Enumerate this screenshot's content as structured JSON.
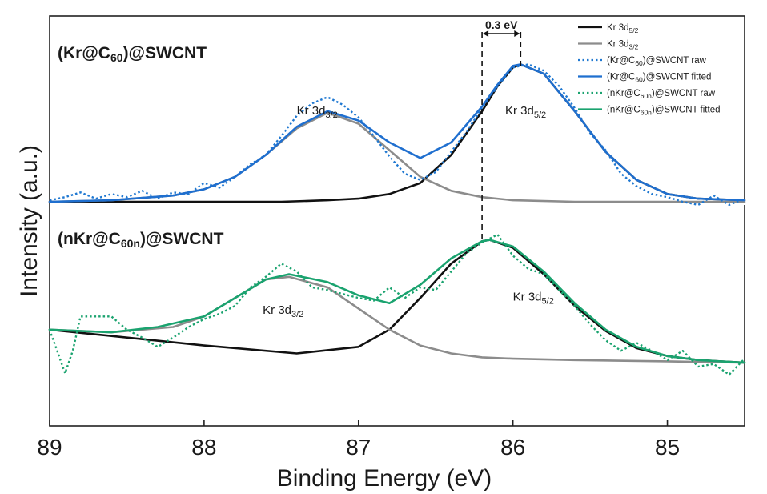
{
  "chart_data": {
    "type": "line",
    "title": "",
    "xlabel": "Binding Energy (eV)",
    "ylabel": "Intensity (a.u.)",
    "xlim": [
      89,
      84.5
    ],
    "x_reversed": true,
    "xticks": [
      89,
      88,
      87,
      86,
      85
    ],
    "x_tick_labels": [
      "89",
      "88",
      "87",
      "86",
      "85"
    ],
    "yticks_shown": false,
    "grid": false,
    "legend_position": "top-right",
    "panels": [
      {
        "name": "top",
        "label_main": "(Kr@C",
        "label_sub": "60",
        "label_tail": ")@SWCNT",
        "peak_labels": [
          {
            "main": "Kr 3d",
            "sub": "3/2",
            "x": 87.4,
            "y": 0.56
          },
          {
            "main": "Kr 3d",
            "sub": "5/2",
            "x": 86.05,
            "y": 0.56
          }
        ],
        "series": [
          {
            "name": "Kr 3d5/2",
            "color": "#111111",
            "style": "solid",
            "x": [
              89,
              88.5,
              88,
              87.5,
              87.2,
              87,
              86.8,
              86.6,
              86.4,
              86.2,
              86.1,
              86.0,
              85.95,
              85.8,
              85.6,
              85.4,
              85.2,
              85.0,
              84.8,
              84.5
            ],
            "y": [
              0.0,
              0.0,
              0.0,
              0.0,
              0.01,
              0.02,
              0.05,
              0.12,
              0.3,
              0.58,
              0.74,
              0.86,
              0.88,
              0.82,
              0.58,
              0.32,
              0.14,
              0.05,
              0.02,
              0.01
            ]
          },
          {
            "name": "Kr 3d3/2",
            "color": "#8c8c8c",
            "style": "solid",
            "x": [
              89,
              88.6,
              88.2,
              88.0,
              87.8,
              87.6,
              87.4,
              87.2,
              87.0,
              86.8,
              86.6,
              86.4,
              86.2,
              86.0,
              85.6,
              85.0,
              84.5
            ],
            "y": [
              0.0,
              0.01,
              0.04,
              0.08,
              0.16,
              0.3,
              0.47,
              0.57,
              0.5,
              0.33,
              0.16,
              0.07,
              0.03,
              0.01,
              0.0,
              0.0,
              0.0
            ]
          },
          {
            "name": "(Kr@C60)@SWCNT raw",
            "color": "#1f78d1",
            "style": "dotted",
            "x": [
              89,
              88.9,
              88.8,
              88.7,
              88.6,
              88.5,
              88.4,
              88.3,
              88.2,
              88.1,
              88.0,
              87.9,
              87.8,
              87.7,
              87.6,
              87.5,
              87.4,
              87.3,
              87.2,
              87.1,
              87.0,
              86.9,
              86.8,
              86.7,
              86.6,
              86.5,
              86.4,
              86.3,
              86.2,
              86.1,
              86.0,
              85.9,
              85.8,
              85.7,
              85.6,
              85.5,
              85.4,
              85.3,
              85.2,
              85.1,
              85.0,
              84.9,
              84.8,
              84.7,
              84.6,
              84.5
            ],
            "y": [
              0.01,
              0.03,
              0.06,
              0.02,
              0.05,
              0.03,
              0.07,
              0.02,
              0.06,
              0.05,
              0.12,
              0.09,
              0.16,
              0.24,
              0.3,
              0.42,
              0.55,
              0.63,
              0.67,
              0.62,
              0.54,
              0.42,
              0.29,
              0.18,
              0.14,
              0.19,
              0.32,
              0.45,
              0.6,
              0.74,
              0.86,
              0.88,
              0.84,
              0.74,
              0.6,
              0.44,
              0.33,
              0.18,
              0.1,
              0.05,
              0.03,
              0.0,
              -0.02,
              0.04,
              -0.02,
              0.02
            ]
          },
          {
            "name": "(Kr@C60)@SWCNT fitted",
            "color": "#1f6fcf",
            "style": "solid",
            "x": [
              89,
              88.6,
              88.2,
              88.0,
              87.8,
              87.6,
              87.4,
              87.2,
              87.0,
              86.8,
              86.6,
              86.4,
              86.2,
              86.1,
              86.0,
              85.95,
              85.8,
              85.6,
              85.4,
              85.2,
              85.0,
              84.8,
              84.5
            ],
            "y": [
              0.0,
              0.01,
              0.04,
              0.08,
              0.16,
              0.3,
              0.48,
              0.58,
              0.52,
              0.38,
              0.28,
              0.38,
              0.61,
              0.75,
              0.87,
              0.88,
              0.82,
              0.58,
              0.32,
              0.14,
              0.05,
              0.02,
              0.01
            ]
          }
        ]
      },
      {
        "name": "bottom",
        "label_main": "(nKr@C",
        "label_sub": "60n",
        "label_tail": ")@SWCNT",
        "peak_labels": [
          {
            "main": "Kr 3d",
            "sub": "3/2",
            "x": 87.62,
            "y": 0.4
          },
          {
            "main": "Kr 3d",
            "sub": "5/2",
            "x": 86.0,
            "y": 0.5
          }
        ],
        "series": [
          {
            "name": "Kr 3d5/2",
            "color": "#111111",
            "style": "solid",
            "x": [
              89,
              88.0,
              87.4,
              87.0,
              86.8,
              86.6,
              86.4,
              86.2,
              86.15,
              86.0,
              85.8,
              85.6,
              85.4,
              85.2,
              85.0,
              84.8,
              84.5
            ],
            "y": [
              0.28,
              0.16,
              0.1,
              0.15,
              0.28,
              0.52,
              0.78,
              0.95,
              0.96,
              0.9,
              0.7,
              0.46,
              0.27,
              0.14,
              0.08,
              0.05,
              0.03
            ]
          },
          {
            "name": "Kr 3d3/2",
            "color": "#8c8c8c",
            "style": "solid",
            "x": [
              89,
              88.6,
              88.2,
              88.0,
              87.8,
              87.6,
              87.45,
              87.2,
              87.0,
              86.8,
              86.6,
              86.4,
              86.2,
              86.0,
              85.6,
              85.0,
              84.5
            ],
            "y": [
              0.28,
              0.26,
              0.3,
              0.38,
              0.52,
              0.66,
              0.68,
              0.6,
              0.44,
              0.28,
              0.16,
              0.1,
              0.07,
              0.06,
              0.05,
              0.04,
              0.03
            ]
          },
          {
            "name": "(nKr@C60n)@SWCNT raw",
            "color": "#1aa36f",
            "style": "dotted",
            "x": [
              89,
              88.9,
              88.85,
              88.8,
              88.6,
              88.5,
              88.4,
              88.3,
              88.2,
              88.1,
              88.0,
              87.9,
              87.8,
              87.7,
              87.6,
              87.5,
              87.4,
              87.3,
              87.2,
              87.1,
              87.0,
              86.9,
              86.8,
              86.7,
              86.6,
              86.5,
              86.4,
              86.3,
              86.2,
              86.1,
              86.0,
              85.9,
              85.8,
              85.7,
              85.6,
              85.5,
              85.4,
              85.3,
              85.2,
              85.1,
              85.0,
              84.9,
              84.8,
              84.7,
              84.6,
              84.5
            ],
            "y": [
              0.28,
              -0.05,
              0.12,
              0.38,
              0.38,
              0.28,
              0.22,
              0.15,
              0.22,
              0.3,
              0.36,
              0.4,
              0.46,
              0.6,
              0.68,
              0.78,
              0.72,
              0.6,
              0.58,
              0.55,
              0.52,
              0.5,
              0.6,
              0.52,
              0.6,
              0.58,
              0.72,
              0.86,
              0.94,
              1.0,
              0.84,
              0.74,
              0.7,
              0.58,
              0.46,
              0.32,
              0.2,
              0.12,
              0.18,
              0.12,
              0.05,
              0.12,
              0.0,
              0.02,
              -0.06,
              0.06
            ]
          },
          {
            "name": "(nKr@C60n)@SWCNT fitted",
            "color": "#1aa36f",
            "style": "solid",
            "x": [
              89,
              88.6,
              88.3,
              88.0,
              87.8,
              87.6,
              87.45,
              87.2,
              87.0,
              86.8,
              86.6,
              86.4,
              86.2,
              86.15,
              86.0,
              85.8,
              85.6,
              85.4,
              85.2,
              85.0,
              84.8,
              84.5
            ],
            "y": [
              0.28,
              0.26,
              0.3,
              0.38,
              0.52,
              0.66,
              0.7,
              0.64,
              0.54,
              0.48,
              0.62,
              0.82,
              0.95,
              0.96,
              0.91,
              0.72,
              0.48,
              0.28,
              0.15,
              0.08,
              0.05,
              0.03
            ]
          }
        ]
      }
    ],
    "annotation": {
      "text": "0.3 eV",
      "x_left": 86.2,
      "x_right": 85.95
    }
  },
  "legend": [
    {
      "main": "Kr 3d",
      "sub": "5/2",
      "tail": "",
      "color": "#111111",
      "style": "solid"
    },
    {
      "main": "Kr 3d",
      "sub": "3/2",
      "tail": "",
      "color": "#8c8c8c",
      "style": "solid"
    },
    {
      "main": "(Kr@C",
      "sub": "60",
      "tail": ")@SWCNT raw",
      "color": "#1f78d1",
      "style": "dotted"
    },
    {
      "main": "(Kr@C",
      "sub": "60",
      "tail": ")@SWCNT fitted",
      "color": "#1f6fcf",
      "style": "solid"
    },
    {
      "main": "(nKr@C",
      "sub": "60n",
      "tail": ")@SWCNT raw",
      "color": "#1aa36f",
      "style": "dotted"
    },
    {
      "main": "(nKr@C",
      "sub": "60n",
      "tail": ")@SWCNT fitted",
      "color": "#1aa36f",
      "style": "solid"
    }
  ]
}
